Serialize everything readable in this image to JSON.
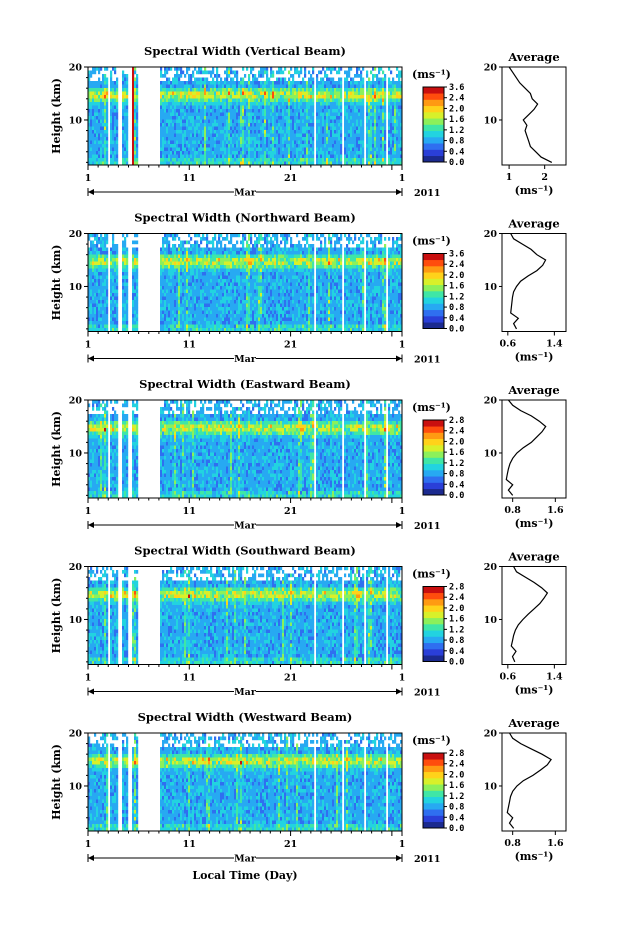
{
  "chart_data": {
    "type": "heatmap",
    "xlabel": "Local Time (Day)",
    "month_label": "Mar",
    "year_label": "2011",
    "x_ticks": [
      "1",
      "11",
      "21",
      "1"
    ],
    "x_range_days": [
      1,
      32
    ],
    "ylabel": "Height (km)",
    "y_ticks": [
      "20",
      "10"
    ],
    "y_range_km": [
      1.5,
      20
    ],
    "colorbar_unit": "(ms⁻¹)",
    "average_title": "Average",
    "average_unit": "(ms⁻¹)",
    "colormap": [
      "#1b2a8f",
      "#2a3fd8",
      "#2f6ff0",
      "#27a9f2",
      "#22d3e0",
      "#3fe6a6",
      "#8cf05a",
      "#d8f02a",
      "#ffd21a",
      "#ff9a12",
      "#ff4d0d",
      "#c90f0f"
    ],
    "panels": [
      {
        "title": "Spectral Width (Vertical Beam)",
        "colorbar_ticks": [
          "3.6",
          "2.4",
          "2.0",
          "1.6",
          "1.2",
          "0.8",
          "0.4",
          "0.0"
        ],
        "avg_xticks": [
          "1",
          "2"
        ],
        "avg_xrange": [
          0.8,
          2.6
        ],
        "average_profile": {
          "height_km": [
            2,
            3,
            4,
            5,
            6,
            7,
            8,
            9,
            10,
            11,
            12,
            13,
            14,
            15,
            16,
            17,
            18,
            19,
            20
          ],
          "value": [
            2.2,
            1.9,
            1.75,
            1.6,
            1.55,
            1.5,
            1.45,
            1.5,
            1.4,
            1.55,
            1.7,
            1.8,
            1.65,
            1.6,
            1.45,
            1.3,
            1.2,
            1.1,
            1.0
          ]
        }
      },
      {
        "title": "Spectral Width (Northward Beam)",
        "colorbar_ticks": [
          "3.6",
          "2.4",
          "2.0",
          "1.6",
          "1.2",
          "0.8",
          "0.4",
          "0.0"
        ],
        "avg_xticks": [
          "0.6",
          "1.4"
        ],
        "avg_xrange": [
          0.5,
          1.6
        ],
        "average_profile": {
          "height_km": [
            2,
            3,
            4,
            5,
            6,
            7,
            8,
            9,
            10,
            11,
            12,
            13,
            14,
            15,
            16,
            17,
            18,
            19,
            20
          ],
          "value": [
            0.75,
            0.7,
            0.78,
            0.65,
            0.66,
            0.67,
            0.68,
            0.7,
            0.75,
            0.82,
            0.95,
            1.1,
            1.2,
            1.25,
            1.1,
            1.0,
            0.85,
            0.7,
            0.65
          ]
        }
      },
      {
        "title": "Spectral Width (Eastward Beam)",
        "colorbar_ticks": [
          "2.8",
          "2.4",
          "2.0",
          "1.6",
          "1.2",
          "0.8",
          "0.4",
          "0.0"
        ],
        "avg_xticks": [
          "0.8",
          "1.6"
        ],
        "avg_xrange": [
          0.6,
          1.8
        ],
        "average_profile": {
          "height_km": [
            2,
            3,
            4,
            5,
            6,
            7,
            8,
            9,
            10,
            11,
            12,
            13,
            14,
            15,
            16,
            17,
            18,
            19,
            20
          ],
          "value": [
            0.8,
            0.72,
            0.8,
            0.68,
            0.7,
            0.72,
            0.75,
            0.8,
            0.88,
            1.0,
            1.15,
            1.25,
            1.35,
            1.42,
            1.3,
            1.15,
            0.95,
            0.8,
            0.72
          ]
        }
      },
      {
        "title": "Spectral Width (Southward Beam)",
        "colorbar_ticks": [
          "2.8",
          "2.4",
          "2.0",
          "1.6",
          "1.2",
          "0.8",
          "0.4",
          "0.0"
        ],
        "avg_xticks": [
          "0.6",
          "1.4"
        ],
        "avg_xrange": [
          0.5,
          1.6
        ],
        "average_profile": {
          "height_km": [
            2,
            3,
            4,
            5,
            6,
            7,
            8,
            9,
            10,
            11,
            12,
            13,
            14,
            15,
            16,
            17,
            18,
            19,
            20
          ],
          "value": [
            0.72,
            0.68,
            0.74,
            0.66,
            0.68,
            0.7,
            0.73,
            0.78,
            0.86,
            0.95,
            1.05,
            1.15,
            1.22,
            1.28,
            1.18,
            1.05,
            0.9,
            0.75,
            0.7
          ]
        }
      },
      {
        "title": "Spectral Width (Westward Beam)",
        "colorbar_ticks": [
          "2.8",
          "2.4",
          "2.0",
          "1.6",
          "1.2",
          "0.8",
          "0.4",
          "0.0"
        ],
        "avg_xticks": [
          "0.8",
          "1.6"
        ],
        "avg_xrange": [
          0.6,
          1.8
        ],
        "average_profile": {
          "height_km": [
            2,
            3,
            4,
            5,
            6,
            7,
            8,
            9,
            10,
            11,
            12,
            13,
            14,
            15,
            16,
            17,
            18,
            19,
            20
          ],
          "value": [
            0.82,
            0.74,
            0.8,
            0.7,
            0.72,
            0.74,
            0.76,
            0.8,
            0.88,
            1.0,
            1.18,
            1.32,
            1.45,
            1.52,
            1.35,
            1.15,
            0.95,
            0.8,
            0.74
          ]
        }
      }
    ]
  }
}
